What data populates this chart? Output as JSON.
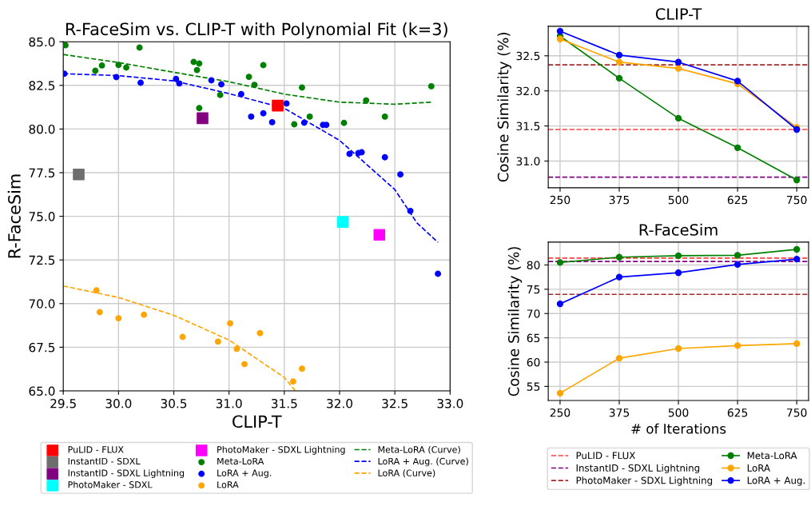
{
  "chart_data": [
    {
      "type": "scatter",
      "title": "R-FaceSim vs. CLIP-T with Polynomial Fit (k=3)",
      "xlabel": "CLIP-T",
      "ylabel": "R-FaceSim",
      "xlim": [
        29.5,
        33.0
      ],
      "ylim": [
        65.0,
        85.0
      ],
      "xticks": [
        {
          "value": 29.5,
          "label": "29.5"
        },
        {
          "value": 30.0,
          "label": "30.0"
        },
        {
          "value": 30.5,
          "label": "30.5"
        },
        {
          "value": 31.0,
          "label": "31.0"
        },
        {
          "value": 31.5,
          "label": "31.5"
        },
        {
          "value": 32.0,
          "label": "32.0"
        },
        {
          "value": 32.5,
          "label": "32.5"
        },
        {
          "value": 33.0,
          "label": "33.0"
        }
      ],
      "yticks": [
        {
          "value": 65.0,
          "label": "65.0"
        },
        {
          "value": 67.5,
          "label": "67.5"
        },
        {
          "value": 70.0,
          "label": "70.0"
        },
        {
          "value": 72.5,
          "label": "72.5"
        },
        {
          "value": 75.0,
          "label": "75.0"
        },
        {
          "value": 77.5,
          "label": "77.5"
        },
        {
          "value": 80.0,
          "label": "80.0"
        },
        {
          "value": 82.5,
          "label": "82.5"
        },
        {
          "value": 85.0,
          "label": "85.0"
        }
      ],
      "grid": true,
      "legend": "bottom",
      "series": [
        {
          "name": "PuLID - FLUX",
          "color": "#ff0000",
          "marker": "square",
          "x": [
            31.44
          ],
          "values": [
            81.34
          ]
        },
        {
          "name": "InstantID - SDXL",
          "color": "#6e6e6e",
          "marker": "square",
          "x": [
            29.64
          ],
          "values": [
            77.4
          ]
        },
        {
          "name": "InstantID - SDXL Lightning",
          "color": "#800080",
          "marker": "square",
          "x": [
            30.76
          ],
          "values": [
            80.62
          ]
        },
        {
          "name": "PhotoMaker - SDXL",
          "color": "#00ffff",
          "marker": "square",
          "x": [
            32.03
          ],
          "values": [
            74.68
          ]
        },
        {
          "name": "PhotoMaker - SDXL Lightning",
          "color": "#ff00ff",
          "marker": "square",
          "x": [
            32.36
          ],
          "values": [
            73.94
          ]
        },
        {
          "name": "Meta-LoRA",
          "color": "#008000",
          "marker": "circle",
          "x": [
            29.52,
            29.79,
            29.85,
            30.0,
            30.07,
            30.19,
            30.68,
            30.73,
            30.71,
            30.73,
            30.92,
            31.18,
            31.23,
            31.31,
            31.59,
            31.66,
            31.73,
            32.04,
            32.24,
            32.41,
            32.83
          ],
          "values": [
            84.8,
            83.34,
            83.64,
            83.67,
            83.52,
            84.67,
            83.84,
            83.75,
            83.38,
            81.2,
            81.95,
            82.99,
            82.53,
            83.66,
            80.27,
            82.38,
            80.71,
            80.35,
            81.64,
            80.71,
            82.45
          ]
        },
        {
          "name": "LoRA + Aug.",
          "color": "#0000ff",
          "marker": "circle",
          "x": [
            29.51,
            29.98,
            30.2,
            30.52,
            30.55,
            30.84,
            30.93,
            31.11,
            31.2,
            31.31,
            31.39,
            31.52,
            31.68,
            31.85,
            31.88,
            32.09,
            32.17,
            32.2,
            32.41,
            32.55,
            32.64,
            32.89
          ],
          "values": [
            83.17,
            82.97,
            82.65,
            82.87,
            82.61,
            82.79,
            82.56,
            82.0,
            80.71,
            80.9,
            80.39,
            81.46,
            80.36,
            80.24,
            80.24,
            78.58,
            78.62,
            78.67,
            78.38,
            77.4,
            75.31,
            71.71
          ]
        },
        {
          "name": "LoRA",
          "color": "#ffa500",
          "marker": "circle",
          "x": [
            29.8,
            29.83,
            30.0,
            30.23,
            30.58,
            30.9,
            31.01,
            31.07,
            31.14,
            31.28,
            31.58,
            31.66
          ],
          "values": [
            70.76,
            69.51,
            69.16,
            69.36,
            68.09,
            67.82,
            68.87,
            67.4,
            66.53,
            68.31,
            65.54,
            66.27
          ]
        },
        {
          "name": "Meta-LoRA (Curve)",
          "type": "line",
          "color": "#008000",
          "line_style": "dashed",
          "x": [
            29.5,
            30.0,
            30.5,
            31.0,
            31.5,
            32.0,
            32.5,
            32.83
          ],
          "values": [
            84.27,
            83.81,
            83.25,
            82.71,
            82.0,
            81.54,
            81.42,
            81.54
          ]
        },
        {
          "name": "LoRA + Aug. (Curve)",
          "type": "line",
          "color": "#0000ff",
          "line_style": "dashed",
          "x": [
            29.5,
            30.0,
            30.5,
            31.0,
            31.5,
            32.0,
            32.5,
            32.7,
            32.89
          ],
          "values": [
            83.17,
            83.06,
            82.76,
            82.03,
            81.19,
            79.35,
            76.53,
            74.62,
            73.51
          ]
        },
        {
          "name": "LoRA (Curve)",
          "type": "line",
          "color": "#ffa500",
          "line_style": "dashed",
          "x": [
            29.5,
            30.0,
            30.5,
            31.0,
            31.5,
            31.6
          ],
          "values": [
            71.01,
            70.35,
            69.33,
            67.91,
            65.77,
            65.0
          ]
        }
      ]
    },
    {
      "type": "line",
      "title": "CLIP-T",
      "ylabel": "Cosine Similarity (%)",
      "x": [
        250,
        375,
        500,
        625,
        750
      ],
      "xlim": [
        225,
        775
      ],
      "ylim": [
        30.62,
        32.92
      ],
      "xticks": [
        250,
        375,
        500,
        625,
        750
      ],
      "yticks": [
        {
          "value": 31.0,
          "label": "31.0"
        },
        {
          "value": 31.5,
          "label": "31.5"
        },
        {
          "value": 32.0,
          "label": "32.0"
        },
        {
          "value": 32.5,
          "label": "32.5"
        }
      ],
      "grid": true,
      "marker": "circle",
      "line_style": "solid",
      "ref_lines": [
        {
          "axis": "y",
          "value": 31.45,
          "color": "#ff4040",
          "line_style": "dashed"
        },
        {
          "axis": "y",
          "value": 30.77,
          "color": "#800080",
          "line_style": "dashed"
        },
        {
          "axis": "y",
          "value": 32.37,
          "color": "#a52a2a",
          "line_style": "dashed"
        }
      ],
      "series": [
        {
          "color": "#008000",
          "values": [
            32.78,
            32.18,
            31.61,
            31.19,
            30.73
          ]
        },
        {
          "color": "#ffa500",
          "values": [
            32.74,
            32.41,
            32.32,
            32.1,
            31.48
          ]
        },
        {
          "color": "#0000ff",
          "values": [
            32.85,
            32.51,
            32.41,
            32.14,
            31.45
          ]
        }
      ]
    },
    {
      "type": "line",
      "title": "R-FaceSim",
      "xlabel": "# of Iterations",
      "ylabel": "Cosine Similarity (%)",
      "x": [
        250,
        375,
        500,
        625,
        750
      ],
      "xlim": [
        225,
        775
      ],
      "ylim": [
        52.1,
        84.7
      ],
      "xticks": [
        250,
        375,
        500,
        625,
        750
      ],
      "yticks": [
        55,
        60,
        65,
        70,
        75,
        80
      ],
      "grid": true,
      "legend": "bottom",
      "marker": "circle",
      "line_style": "solid",
      "ref_lines": [
        {
          "axis": "y",
          "value": 81.42,
          "label": "PuLID - FLUX",
          "color": "#ff4040",
          "line_style": "dashed"
        },
        {
          "axis": "y",
          "value": 80.71,
          "label": "InstantID - SDXL Lightning",
          "color": "#800080",
          "line_style": "dashed"
        },
        {
          "axis": "y",
          "value": 73.95,
          "label": "PhotoMaker - SDXL Lightning",
          "color": "#a52a2a",
          "line_style": "dashed"
        }
      ],
      "series": [
        {
          "name": "Meta-LoRA",
          "color": "#008000",
          "values": [
            80.5,
            81.6,
            81.9,
            82.0,
            83.2
          ]
        },
        {
          "name": "LoRA",
          "color": "#ffa500",
          "values": [
            53.6,
            60.8,
            62.8,
            63.4,
            63.8
          ]
        },
        {
          "name": "LoRA + Aug.",
          "color": "#0000ff",
          "values": [
            72.0,
            77.5,
            78.4,
            80.1,
            81.2
          ]
        }
      ]
    }
  ]
}
